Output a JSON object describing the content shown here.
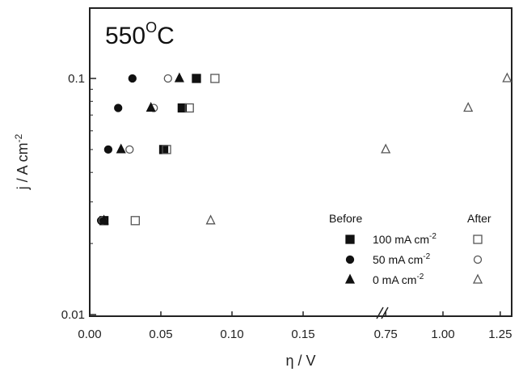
{
  "chart_data": {
    "type": "scatter",
    "annotation": "550",
    "annotation_degree": "O",
    "annotation_unit": "C",
    "xlabel": "η / V",
    "ylabel_html": "j / A cm",
    "ylabel_sup": "-2",
    "y_scale": "log",
    "ylim": [
      0.01,
      0.2
    ],
    "x_axis_broken": true,
    "x_segments": [
      {
        "range": [
          0.0,
          0.2
        ],
        "ticks": [
          "0.00",
          "0.05",
          "0.10",
          "0.15"
        ],
        "tick_values": [
          0.0,
          0.05,
          0.1,
          0.15
        ]
      },
      {
        "range": [
          0.7,
          1.3
        ],
        "ticks": [
          "0.75",
          "1.00",
          "1.25"
        ],
        "tick_values": [
          0.75,
          1.0,
          1.25
        ]
      }
    ],
    "y_ticks": [
      "0.01",
      "0.1"
    ],
    "y_tick_values": [
      0.01,
      0.1
    ],
    "legend": {
      "placement": "bottom-right",
      "header_before": "Before",
      "header_after": "After",
      "entries": [
        {
          "label": "100 mA cm",
          "sup": "-2",
          "marker_before": "filled-square",
          "marker_after": "open-square"
        },
        {
          "label": "50 mA cm",
          "sup": "-2",
          "marker_before": "filled-circle",
          "marker_after": "open-circle"
        },
        {
          "label": "0 mA cm",
          "sup": "-2",
          "marker_before": "filled-triangle",
          "marker_after": "open-triangle"
        }
      ]
    },
    "series": [
      {
        "name": "100 mA cm-2 Before",
        "marker": "filled-square",
        "points": [
          [
            0.01,
            0.025
          ],
          [
            0.052,
            0.05
          ],
          [
            0.065,
            0.075
          ],
          [
            0.075,
            0.1
          ]
        ]
      },
      {
        "name": "100 mA cm-2 After",
        "marker": "open-square",
        "points": [
          [
            0.032,
            0.025
          ],
          [
            0.054,
            0.05
          ],
          [
            0.07,
            0.075
          ],
          [
            0.088,
            0.1
          ]
        ]
      },
      {
        "name": "50 mA cm-2 Before",
        "marker": "filled-circle",
        "points": [
          [
            0.008,
            0.025
          ],
          [
            0.013,
            0.05
          ],
          [
            0.02,
            0.075
          ],
          [
            0.03,
            0.1
          ]
        ]
      },
      {
        "name": "50 mA cm-2 After",
        "marker": "open-circle",
        "points": [
          [
            0.009,
            0.025
          ],
          [
            0.028,
            0.05
          ],
          [
            0.045,
            0.075
          ],
          [
            0.055,
            0.1
          ]
        ]
      },
      {
        "name": "0 mA cm-2 Before",
        "marker": "filled-triangle",
        "points": [
          [
            0.01,
            0.025
          ],
          [
            0.022,
            0.05
          ],
          [
            0.043,
            0.075
          ],
          [
            0.063,
            0.1
          ]
        ]
      },
      {
        "name": "0 mA cm-2 After",
        "marker": "open-triangle",
        "points": [
          [
            0.085,
            0.025
          ],
          [
            0.75,
            0.05
          ],
          [
            1.11,
            0.075
          ],
          [
            1.28,
            0.1
          ]
        ]
      }
    ]
  }
}
